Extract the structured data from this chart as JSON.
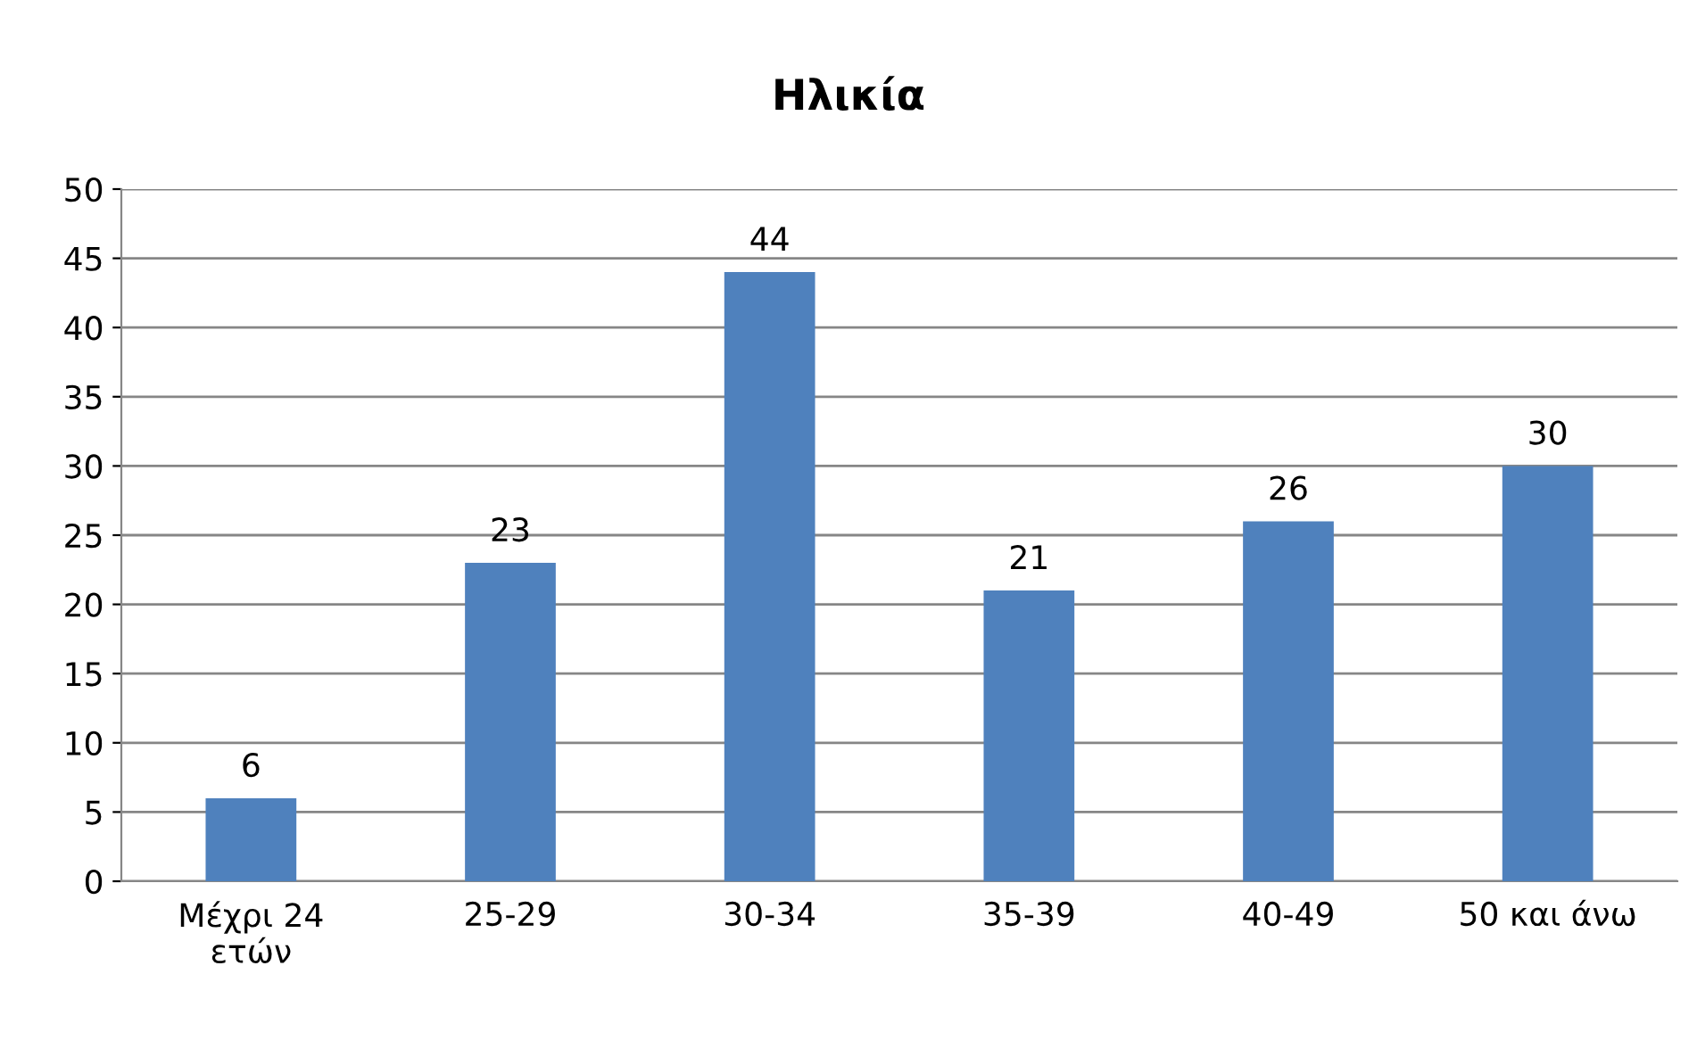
{
  "chart_data": {
    "type": "bar",
    "title": "Ηλικία",
    "categories": [
      "Μέχρι 24\nετών",
      "25-29",
      "30-34",
      "35-39",
      "40-49",
      "50 και άνω"
    ],
    "values": [
      6,
      23,
      44,
      21,
      26,
      30
    ],
    "color": "#4f81bd",
    "ylim": [
      0,
      50
    ],
    "yticks": [
      0,
      5,
      10,
      15,
      20,
      25,
      30,
      35,
      40,
      45,
      50
    ],
    "grid": "y",
    "data_labels": true,
    "legend": false
  }
}
